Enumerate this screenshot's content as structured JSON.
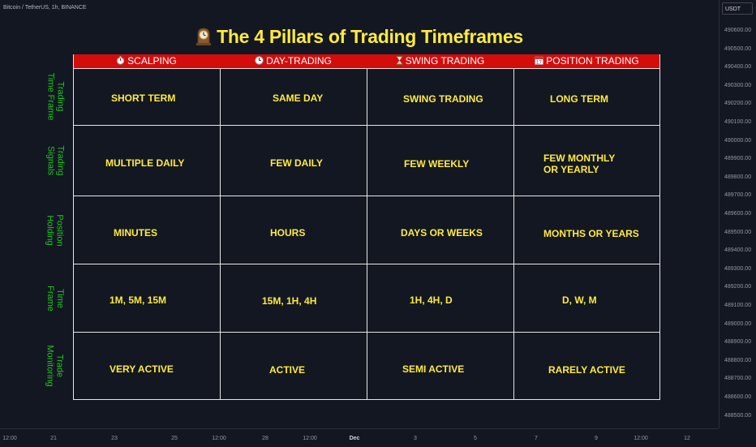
{
  "symbol_info": "Bitcoin / TetherUS, 1h, BINANCE",
  "currency": "USDT",
  "title": "The 4 Pillars of Trading Timeframes",
  "columns": [
    {
      "icon": "stopwatch-icon",
      "label": "SCALPING"
    },
    {
      "icon": "clock-icon",
      "label": "DAY-TRADING"
    },
    {
      "icon": "hourglass-icon",
      "label": "SWING TRADING"
    },
    {
      "icon": "calendar-icon",
      "label": "POSITION TRADING"
    }
  ],
  "rows": [
    {
      "label": "Trading\nTime Frame",
      "cells": [
        "SHORT TERM",
        "SAME DAY",
        "SWING TRADING",
        "LONG TERM"
      ]
    },
    {
      "label": "Trading\nSignals",
      "cells": [
        "MULTIPLE DAILY",
        "FEW DAILY",
        "FEW WEEKLY",
        "FEW MONTHLY\nOR YEARLY"
      ]
    },
    {
      "label": "Position\nHolding",
      "cells": [
        "MINUTES",
        "HOURS",
        "DAYS OR WEEKS",
        "MONTHS OR YEARS"
      ]
    },
    {
      "label": "Time\nFrame",
      "cells": [
        "1M, 5M, 15M",
        "15M, 1H, 4H",
        "1H, 4H, D",
        "D, W, M"
      ]
    },
    {
      "label": "Trade\nMonitoring",
      "cells": [
        "VERY ACTIVE",
        "ACTIVE",
        "SEMI ACTIVE",
        "RARELY ACTIVE"
      ]
    }
  ],
  "price_ticks": [
    "490600.00",
    "490500.00",
    "490400.00",
    "490300.00",
    "490200.00",
    "490100.00",
    "490000.00",
    "489900.00",
    "489800.00",
    "489700.00",
    "489600.00",
    "489500.00",
    "489400.00",
    "489300.00",
    "489200.00",
    "489100.00",
    "489000.00",
    "488900.00",
    "488800.00",
    "488700.00",
    "488600.00",
    "488500.00"
  ],
  "time_ticks": [
    "12:00",
    "21",
    "23",
    "25",
    "12:00",
    "28",
    "12:00",
    "Dec",
    "3",
    "5",
    "7",
    "9",
    "12:00",
    "12"
  ],
  "colors": {
    "background": "#131722",
    "title": "#ffeb3b",
    "header": "#d40c0c",
    "row_label": "#21c521",
    "cell_text": "#ffeb3b",
    "grid": "#e6e6e6"
  }
}
